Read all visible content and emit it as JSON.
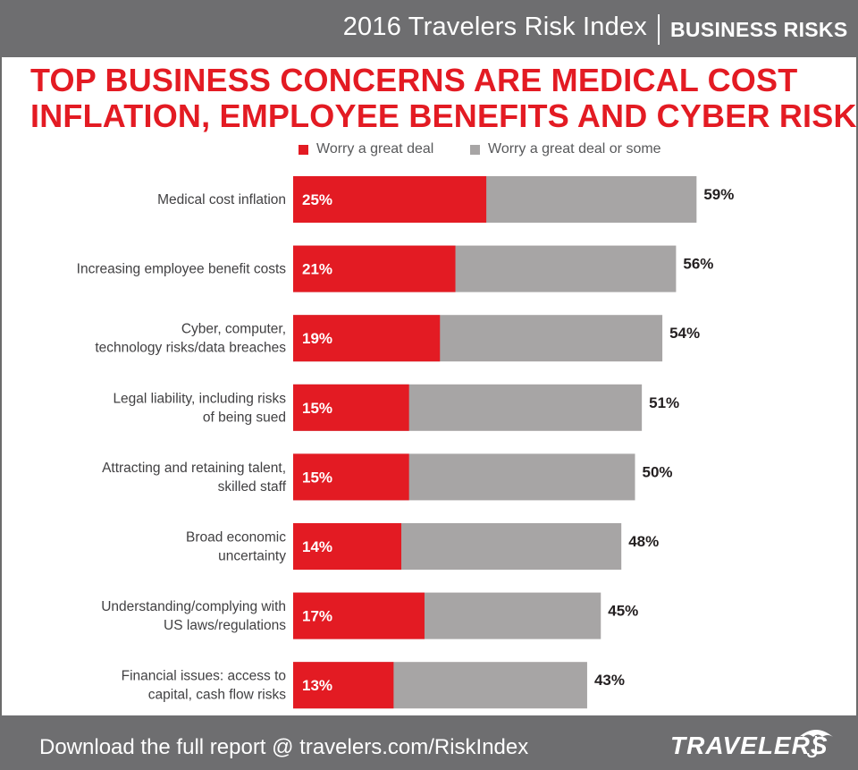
{
  "header": {
    "title": "2016 Travelers Risk Index",
    "section": "BUSINESS RISKS"
  },
  "headline": {
    "line1": "TOP BUSINESS CONCERNS ARE MEDICAL COST",
    "line2": "INFLATION, EMPLOYEE BENEFITS AND CYBER RISKS"
  },
  "colors": {
    "accent_red": "#e31b23",
    "bar_gray": "#a7a5a5",
    "header_gray": "#6e6e70",
    "label_text": "#414042"
  },
  "chart_data": {
    "type": "bar",
    "orientation": "horizontal",
    "categories": [
      [
        "Medical cost inflation"
      ],
      [
        "Increasing employee benefit costs"
      ],
      [
        "Cyber, computer,",
        "technology risks/data breaches"
      ],
      [
        "Legal liability, including risks",
        "of being sued"
      ],
      [
        "Attracting and retaining talent,",
        "skilled staff"
      ],
      [
        "Broad economic",
        "uncertainty"
      ],
      [
        "Understanding/complying with",
        "US laws/regulations"
      ],
      [
        "Financial issues: access to",
        "capital, cash flow risks"
      ]
    ],
    "series": [
      {
        "name": "Worry a great deal",
        "color": "#e31b23",
        "values": [
          25,
          21,
          19,
          15,
          15,
          14,
          17,
          13
        ]
      },
      {
        "name": "Worry a great deal or some",
        "color": "#a7a5a5",
        "values": [
          59,
          56,
          54,
          51,
          50,
          48,
          45,
          43
        ]
      }
    ],
    "value_suffix": "%",
    "xlim": [
      0,
      59
    ],
    "grid": false,
    "legend_position": "top"
  },
  "footer": {
    "text": "Download the full report @ travelers.com/RiskIndex",
    "logo": "TRAVELERS"
  }
}
